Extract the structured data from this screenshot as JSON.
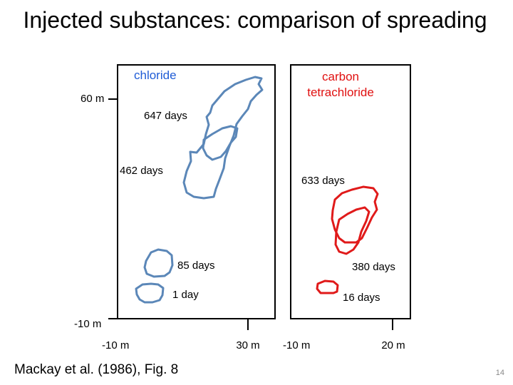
{
  "title": "Injected substances: comparison of spreading",
  "panels": {
    "chloride": {
      "name": "chloride",
      "color": "#5b87b8",
      "label_color": "#1f5cd6",
      "times": {
        "t647": "647 days",
        "t462": "462 days",
        "t85": "85 days",
        "t1": "1 day"
      }
    },
    "ctc": {
      "name": "carbon tetrachloride",
      "name_line1": "carbon",
      "name_line2": "tetrachloride",
      "color": "#e01a1a",
      "label_color": "#e01010",
      "times": {
        "t633": "633 days",
        "t380": "380 days",
        "t16": "16 days"
      }
    }
  },
  "axis": {
    "y_top": "60 m",
    "y_bottom": "-10 m",
    "x_left_min": "-10 m",
    "x_left_max": "30 m",
    "x_right_min": "-10 m",
    "x_right_max": "20 m"
  },
  "citation": "Mackay et al. (1986), Fig. 8",
  "page_number": "14"
}
